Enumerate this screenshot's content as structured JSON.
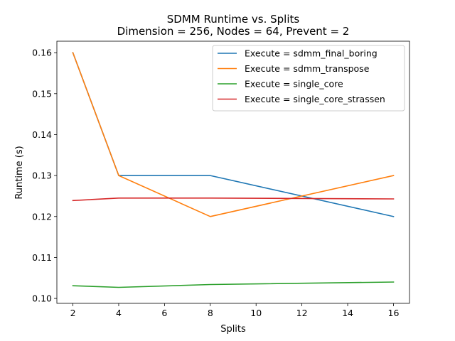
{
  "chart_data": {
    "type": "line",
    "title": "SDMM Runtime vs. Splits",
    "subtitle": "Dimension = 256, Nodes = 64, Prevent = 2",
    "xlabel": "Splits",
    "ylabel": "Runtime (s)",
    "xlim": [
      1.3,
      16.7
    ],
    "ylim": [
      0.0988,
      0.1628
    ],
    "xticks": [
      2,
      4,
      6,
      8,
      10,
      12,
      14,
      16
    ],
    "xtick_labels": [
      "2",
      "4",
      "6",
      "8",
      "10",
      "12",
      "14",
      "16"
    ],
    "yticks": [
      0.1,
      0.11,
      0.12,
      0.13,
      0.14,
      0.15,
      0.16
    ],
    "ytick_labels": [
      "0.10",
      "0.11",
      "0.12",
      "0.13",
      "0.14",
      "0.15",
      "0.16"
    ],
    "grid": false,
    "legend_position": "top-right",
    "series": [
      {
        "name": "Execute = sdmm_final_boring",
        "color": "#1f77b4",
        "x": [
          2,
          4,
          8,
          16
        ],
        "values": [
          0.16,
          0.13,
          0.13,
          0.12
        ]
      },
      {
        "name": "Execute = sdmm_transpose",
        "color": "#ff7f0e",
        "x": [
          2,
          4,
          8,
          16
        ],
        "values": [
          0.16,
          0.13,
          0.12,
          0.13
        ]
      },
      {
        "name": "Execute = single_core",
        "color": "#2ca02c",
        "x": [
          2,
          4,
          8,
          16
        ],
        "values": [
          0.1031,
          0.1027,
          0.1034,
          0.104
        ]
      },
      {
        "name": "Execute = single_core_strassen",
        "color": "#d62728",
        "x": [
          2,
          4,
          8,
          16
        ],
        "values": [
          0.1239,
          0.1245,
          0.1245,
          0.1243
        ]
      }
    ]
  }
}
